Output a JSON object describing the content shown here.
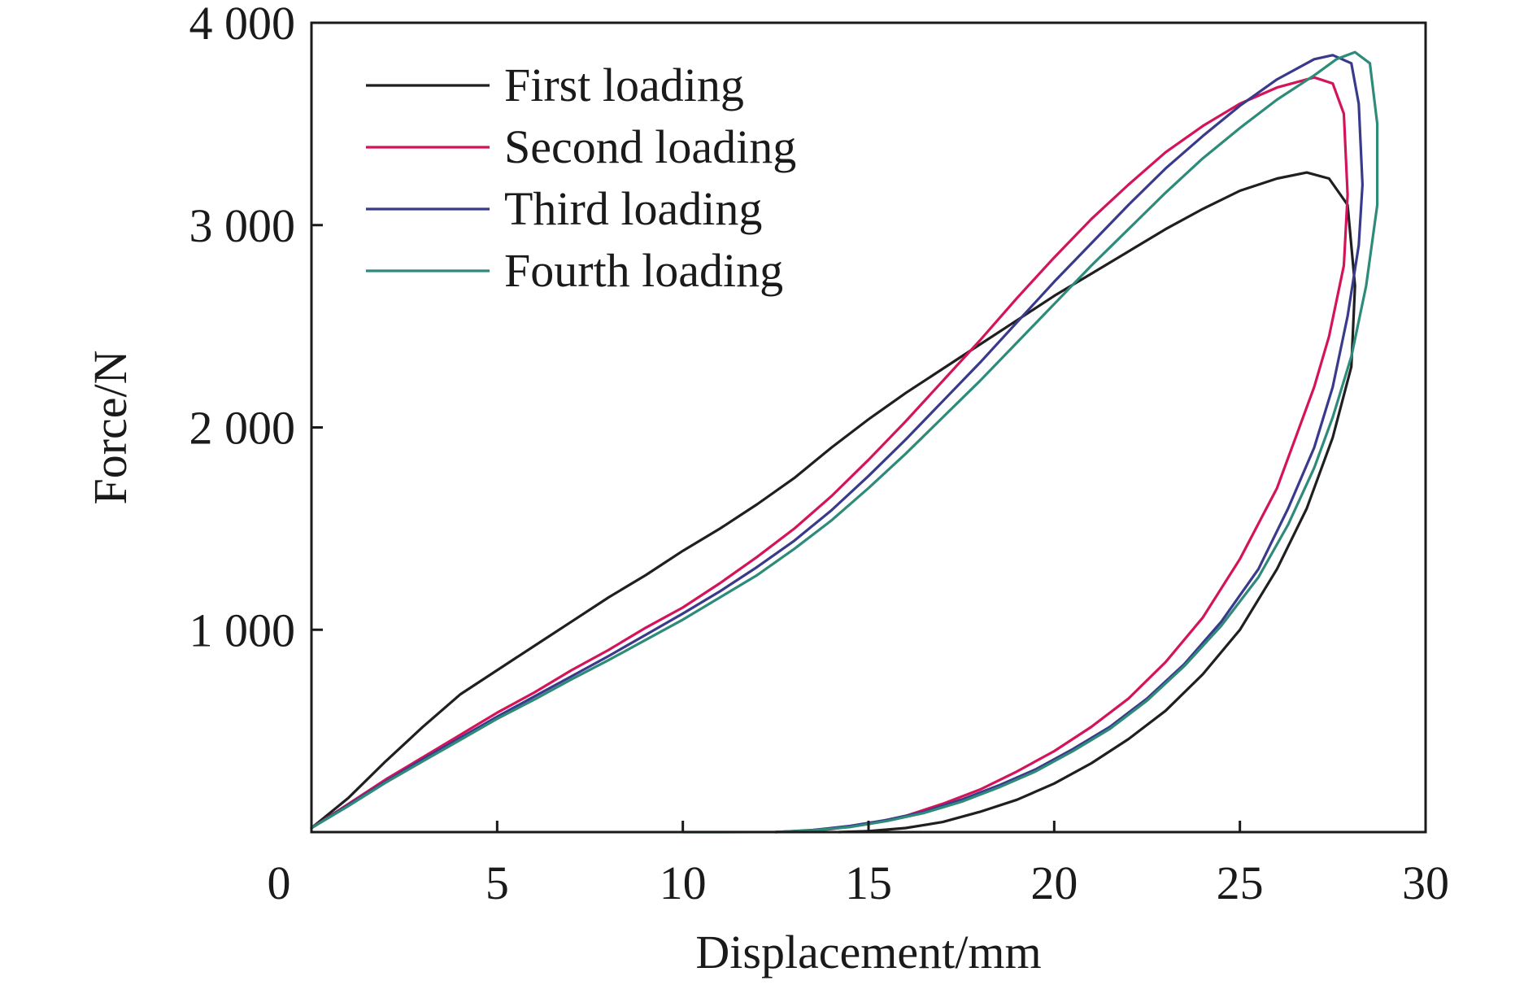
{
  "chart_data": {
    "type": "line",
    "title": "",
    "xlabel": "Displacement/mm",
    "ylabel": "Force/N",
    "xlim": [
      0,
      30
    ],
    "ylim": [
      0,
      4000
    ],
    "x_ticks": [
      0,
      5,
      10,
      15,
      20,
      25,
      30
    ],
    "x_tick_labels": [
      "0",
      "5",
      "10",
      "15",
      "20",
      "25",
      "30"
    ],
    "y_ticks": [
      1000,
      2000,
      3000,
      4000
    ],
    "y_tick_labels": [
      "1 000",
      "2 000",
      "3 000",
      "4 000"
    ],
    "grid": false,
    "legend_position": "top-left",
    "series": [
      {
        "name": "First loading",
        "color": "#1f1f1f",
        "points": [
          [
            0,
            20
          ],
          [
            1,
            170
          ],
          [
            2,
            350
          ],
          [
            3,
            520
          ],
          [
            4,
            680
          ],
          [
            5,
            800
          ],
          [
            6,
            920
          ],
          [
            7,
            1040
          ],
          [
            8,
            1160
          ],
          [
            9,
            1270
          ],
          [
            10,
            1390
          ],
          [
            11,
            1500
          ],
          [
            12,
            1620
          ],
          [
            13,
            1750
          ],
          [
            14,
            1900
          ],
          [
            15,
            2040
          ],
          [
            16,
            2170
          ],
          [
            17,
            2290
          ],
          [
            18,
            2410
          ],
          [
            19,
            2530
          ],
          [
            20,
            2650
          ],
          [
            21,
            2760
          ],
          [
            22,
            2870
          ],
          [
            23,
            2980
          ],
          [
            24,
            3080
          ],
          [
            25,
            3170
          ],
          [
            26,
            3230
          ],
          [
            26.8,
            3260
          ],
          [
            27.4,
            3230
          ],
          [
            27.9,
            3100
          ],
          [
            28.1,
            2700
          ],
          [
            28.0,
            2300
          ],
          [
            27.5,
            1950
          ],
          [
            26.8,
            1600
          ],
          [
            26,
            1300
          ],
          [
            25,
            1000
          ],
          [
            24,
            780
          ],
          [
            23,
            600
          ],
          [
            22,
            460
          ],
          [
            21,
            340
          ],
          [
            20,
            240
          ],
          [
            19,
            160
          ],
          [
            18,
            100
          ],
          [
            17,
            50
          ],
          [
            16,
            20
          ],
          [
            15,
            5
          ],
          [
            14.2,
            0
          ]
        ]
      },
      {
        "name": "Second loading",
        "color": "#d4145a",
        "points": [
          [
            0,
            20
          ],
          [
            1,
            140
          ],
          [
            2,
            260
          ],
          [
            3,
            370
          ],
          [
            4,
            480
          ],
          [
            5,
            590
          ],
          [
            6,
            690
          ],
          [
            7,
            800
          ],
          [
            8,
            900
          ],
          [
            9,
            1010
          ],
          [
            10,
            1110
          ],
          [
            11,
            1230
          ],
          [
            12,
            1360
          ],
          [
            13,
            1500
          ],
          [
            14,
            1660
          ],
          [
            15,
            1840
          ],
          [
            16,
            2030
          ],
          [
            17,
            2230
          ],
          [
            18,
            2430
          ],
          [
            19,
            2640
          ],
          [
            20,
            2840
          ],
          [
            21,
            3030
          ],
          [
            22,
            3200
          ],
          [
            23,
            3360
          ],
          [
            24,
            3490
          ],
          [
            25,
            3600
          ],
          [
            26,
            3680
          ],
          [
            27,
            3730
          ],
          [
            27.5,
            3700
          ],
          [
            27.8,
            3550
          ],
          [
            27.9,
            3150
          ],
          [
            27.8,
            2800
          ],
          [
            27.4,
            2450
          ],
          [
            27,
            2200
          ],
          [
            26.5,
            1950
          ],
          [
            26,
            1700
          ],
          [
            25,
            1350
          ],
          [
            24,
            1060
          ],
          [
            23,
            840
          ],
          [
            22,
            660
          ],
          [
            21,
            520
          ],
          [
            20,
            400
          ],
          [
            19,
            300
          ],
          [
            18,
            210
          ],
          [
            17,
            140
          ],
          [
            16,
            80
          ],
          [
            15,
            40
          ],
          [
            14,
            15
          ],
          [
            13,
            3
          ],
          [
            12.5,
            0
          ]
        ]
      },
      {
        "name": "Third loading",
        "color": "#3a3a8c",
        "points": [
          [
            0,
            20
          ],
          [
            1,
            135
          ],
          [
            2,
            250
          ],
          [
            3,
            360
          ],
          [
            4,
            465
          ],
          [
            5,
            570
          ],
          [
            6,
            670
          ],
          [
            7,
            770
          ],
          [
            8,
            870
          ],
          [
            9,
            975
          ],
          [
            10,
            1080
          ],
          [
            11,
            1190
          ],
          [
            12,
            1310
          ],
          [
            13,
            1440
          ],
          [
            14,
            1590
          ],
          [
            15,
            1760
          ],
          [
            16,
            1940
          ],
          [
            17,
            2130
          ],
          [
            18,
            2320
          ],
          [
            19,
            2520
          ],
          [
            20,
            2720
          ],
          [
            21,
            2910
          ],
          [
            22,
            3100
          ],
          [
            23,
            3280
          ],
          [
            24,
            3440
          ],
          [
            25,
            3590
          ],
          [
            26,
            3720
          ],
          [
            27,
            3820
          ],
          [
            27.5,
            3840
          ],
          [
            28,
            3800
          ],
          [
            28.2,
            3600
          ],
          [
            28.3,
            3200
          ],
          [
            28.2,
            2900
          ],
          [
            27.9,
            2550
          ],
          [
            27.5,
            2200
          ],
          [
            27,
            1900
          ],
          [
            26.3,
            1600
          ],
          [
            25.5,
            1300
          ],
          [
            24.5,
            1040
          ],
          [
            23.5,
            830
          ],
          [
            22.5,
            660
          ],
          [
            21.5,
            520
          ],
          [
            20.5,
            410
          ],
          [
            19.5,
            310
          ],
          [
            18.5,
            230
          ],
          [
            17.5,
            160
          ],
          [
            16.5,
            100
          ],
          [
            15.5,
            60
          ],
          [
            14.5,
            30
          ],
          [
            13.5,
            10
          ],
          [
            12.5,
            0
          ]
        ]
      },
      {
        "name": "Fourth loading",
        "color": "#2e8b7a",
        "points": [
          [
            0,
            20
          ],
          [
            1,
            130
          ],
          [
            2,
            245
          ],
          [
            3,
            350
          ],
          [
            4,
            455
          ],
          [
            5,
            560
          ],
          [
            6,
            655
          ],
          [
            7,
            755
          ],
          [
            8,
            850
          ],
          [
            9,
            950
          ],
          [
            10,
            1050
          ],
          [
            11,
            1160
          ],
          [
            12,
            1270
          ],
          [
            13,
            1400
          ],
          [
            14,
            1540
          ],
          [
            15,
            1700
          ],
          [
            16,
            1870
          ],
          [
            17,
            2050
          ],
          [
            18,
            2230
          ],
          [
            19,
            2420
          ],
          [
            20,
            2610
          ],
          [
            21,
            2800
          ],
          [
            22,
            2980
          ],
          [
            23,
            3160
          ],
          [
            24,
            3330
          ],
          [
            25,
            3480
          ],
          [
            26,
            3620
          ],
          [
            27,
            3740
          ],
          [
            27.6,
            3820
          ],
          [
            28.1,
            3855
          ],
          [
            28.5,
            3800
          ],
          [
            28.7,
            3500
          ],
          [
            28.7,
            3100
          ],
          [
            28.4,
            2700
          ],
          [
            28,
            2350
          ],
          [
            27.5,
            2050
          ],
          [
            27,
            1800
          ],
          [
            26.3,
            1520
          ],
          [
            25.5,
            1260
          ],
          [
            24.5,
            1020
          ],
          [
            23.5,
            820
          ],
          [
            22.5,
            650
          ],
          [
            21.5,
            510
          ],
          [
            20.5,
            400
          ],
          [
            19.5,
            300
          ],
          [
            18.5,
            220
          ],
          [
            17.5,
            150
          ],
          [
            16.5,
            95
          ],
          [
            15.5,
            55
          ],
          [
            14.5,
            25
          ],
          [
            13.5,
            8
          ],
          [
            12.5,
            1
          ],
          [
            11,
            0
          ],
          [
            10,
            0
          ]
        ]
      }
    ]
  }
}
